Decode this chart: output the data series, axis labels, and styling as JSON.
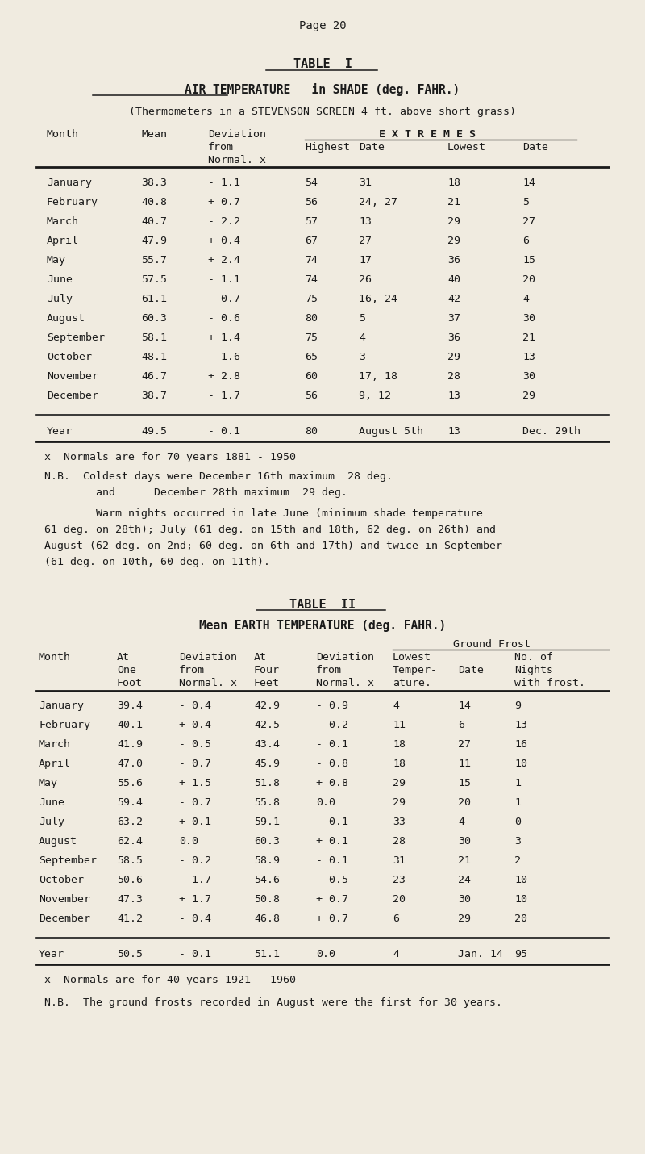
{
  "bg_color": "#f0ebe0",
  "text_color": "#1a1a1a",
  "page_header": "Page 20",
  "table1_title": "TABLE  I",
  "table1_subtitle1": "AIR TEMPERATURE   in SHADE (deg. FAHR.)",
  "table1_subtitle2": "(Thermometers in a STEVENSON SCREEN 4 ft. above short grass)",
  "table1_rows": [
    [
      "January",
      "38.3",
      "- 1.1",
      "54",
      "31",
      "18",
      "14"
    ],
    [
      "February",
      "40.8",
      "+ 0.7",
      "56",
      "24, 27",
      "21",
      "5"
    ],
    [
      "March",
      "40.7",
      "- 2.2",
      "57",
      "13",
      "29",
      "27"
    ],
    [
      "April",
      "47.9",
      "+ 0.4",
      "67",
      "27",
      "29",
      "6"
    ],
    [
      "May",
      "55.7",
      "+ 2.4",
      "74",
      "17",
      "36",
      "15"
    ],
    [
      "June",
      "57.5",
      "- 1.1",
      "74",
      "26",
      "40",
      "20"
    ],
    [
      "July",
      "61.1",
      "- 0.7",
      "75",
      "16, 24",
      "42",
      "4"
    ],
    [
      "August",
      "60.3",
      "- 0.6",
      "80",
      "5",
      "37",
      "30"
    ],
    [
      "September",
      "58.1",
      "+ 1.4",
      "75",
      "4",
      "36",
      "21"
    ],
    [
      "October",
      "48.1",
      "- 1.6",
      "65",
      "3",
      "29",
      "13"
    ],
    [
      "November",
      "46.7",
      "+ 2.8",
      "60",
      "17, 18",
      "28",
      "30"
    ],
    [
      "December",
      "38.7",
      "- 1.7",
      "56",
      "9, 12",
      "13",
      "29"
    ]
  ],
  "table1_year_row": [
    "Year",
    "49.5",
    "- 0.1",
    "80",
    "August 5th",
    "13",
    "Dec. 29th"
  ],
  "table1_note1": "x  Normals are for 70 years 1881 - 1950",
  "table1_note2a": "N.B.  Coldest days were December 16th maximum  28 deg.",
  "table1_note2b": "        and      December 28th maximum  29 deg.",
  "table1_note3a": "        Warm nights occurred in late June (minimum shade temperature",
  "table1_note3b": "61 deg. on 28th); July (61 deg. on 15th and 18th, 62 deg. on 26th) and",
  "table1_note3c": "August (62 deg. on 2nd; 60 deg. on 6th and 17th) and twice in September",
  "table1_note3d": "(61 deg. on 10th, 60 deg. on 11th).",
  "table2_title": "TABLE  II",
  "table2_subtitle": "Mean EARTH TEMPERATURE (deg. FAHR.)",
  "table2_ground_frost": "Ground Frost",
  "table2_rows": [
    [
      "January",
      "39.4",
      "- 0.4",
      "42.9",
      "- 0.9",
      "4",
      "14",
      "9"
    ],
    [
      "February",
      "40.1",
      "+ 0.4",
      "42.5",
      "- 0.2",
      "11",
      "6",
      "13"
    ],
    [
      "March",
      "41.9",
      "- 0.5",
      "43.4",
      "- 0.1",
      "18",
      "27",
      "16"
    ],
    [
      "April",
      "47.0",
      "- 0.7",
      "45.9",
      "- 0.8",
      "18",
      "11",
      "10"
    ],
    [
      "May",
      "55.6",
      "+ 1.5",
      "51.8",
      "+ 0.8",
      "29",
      "15",
      "1"
    ],
    [
      "June",
      "59.4",
      "- 0.7",
      "55.8",
      "0.0",
      "29",
      "20",
      "1"
    ],
    [
      "July",
      "63.2",
      "+ 0.1",
      "59.1",
      "- 0.1",
      "33",
      "4",
      "0"
    ],
    [
      "August",
      "62.4",
      "0.0",
      "60.3",
      "+ 0.1",
      "28",
      "30",
      "3"
    ],
    [
      "September",
      "58.5",
      "- 0.2",
      "58.9",
      "- 0.1",
      "31",
      "21",
      "2"
    ],
    [
      "October",
      "50.6",
      "- 1.7",
      "54.6",
      "- 0.5",
      "23",
      "24",
      "10"
    ],
    [
      "November",
      "47.3",
      "+ 1.7",
      "50.8",
      "+ 0.7",
      "20",
      "30",
      "10"
    ],
    [
      "December",
      "41.2",
      "- 0.4",
      "46.8",
      "+ 0.7",
      "6",
      "29",
      "20"
    ]
  ],
  "table2_year_row": [
    "Year",
    "50.5",
    "- 0.1",
    "51.1",
    "0.0",
    "4",
    "Jan. 14",
    "95"
  ],
  "table2_note1": "x  Normals are for 40 years 1921 - 1960",
  "table2_note2": "N.B.  The ground frosts recorded in August were the first for 30 years."
}
